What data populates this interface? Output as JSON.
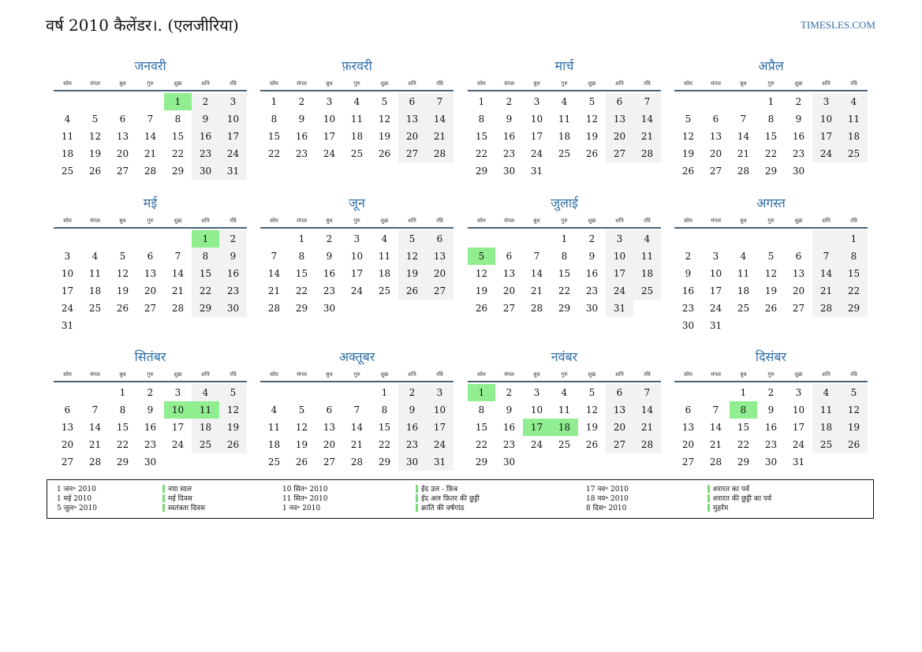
{
  "header": {
    "title": "वर्ष 2010 कैलेंडर।. (एलजीरिया)",
    "site": "TIMESLES.COM"
  },
  "weekdays": [
    "सोम",
    "मंगल",
    "बुध",
    "गुरु",
    "शुक्र",
    "शनि",
    "रवि"
  ],
  "months": [
    {
      "name": "जनवरी",
      "offset": 4,
      "days": 31,
      "holidays": [
        1
      ]
    },
    {
      "name": "फ़रवरी",
      "offset": 0,
      "days": 28,
      "holidays": []
    },
    {
      "name": "मार्च",
      "offset": 0,
      "days": 31,
      "holidays": []
    },
    {
      "name": "अप्रैल",
      "offset": 3,
      "days": 30,
      "holidays": []
    },
    {
      "name": "मई",
      "offset": 5,
      "days": 31,
      "holidays": [
        1
      ]
    },
    {
      "name": "जून",
      "offset": 1,
      "days": 30,
      "holidays": []
    },
    {
      "name": "जुलाई",
      "offset": 3,
      "days": 31,
      "holidays": [
        5
      ]
    },
    {
      "name": "अगस्त",
      "offset": 6,
      "days": 31,
      "holidays": []
    },
    {
      "name": "सितंबर",
      "offset": 2,
      "days": 30,
      "holidays": [
        10,
        11
      ]
    },
    {
      "name": "अक्तूबर",
      "offset": 4,
      "days": 31,
      "holidays": []
    },
    {
      "name": "नवंबर",
      "offset": 0,
      "days": 30,
      "holidays": [
        1,
        17,
        18
      ]
    },
    {
      "name": "दिसंबर",
      "offset": 2,
      "days": 31,
      "holidays": [
        8
      ]
    }
  ],
  "legend": [
    [
      {
        "date": "1 जन॰ 2010",
        "name": "नया साल"
      },
      {
        "date": "1 मई 2010",
        "name": "मई दिवस"
      },
      {
        "date": "5 जुल॰ 2010",
        "name": "स्वतंत्रता दिवस"
      }
    ],
    [
      {
        "date": "10 सित॰ 2010",
        "name": "ईद उल - फ़ित्र"
      },
      {
        "date": "11 सित॰ 2010",
        "name": "ईद अल फ़ितर की छुट्टी"
      },
      {
        "date": "1 नव॰ 2010",
        "name": "क्रांति की वर्षगांठ"
      }
    ],
    [
      {
        "date": "17 नव॰ 2010",
        "name": "शरारत का पर्व"
      },
      {
        "date": "18 नव॰ 2010",
        "name": "शरारत की छुट्टी का पर्व"
      },
      {
        "date": "8 दिस॰ 2010",
        "name": "मुहर्रम"
      }
    ]
  ],
  "colors": {
    "accent": "#2e6fa8",
    "holiday": "#90ee90",
    "weekend": "#f2f2f2",
    "legend_bar": "#7ad97a"
  }
}
